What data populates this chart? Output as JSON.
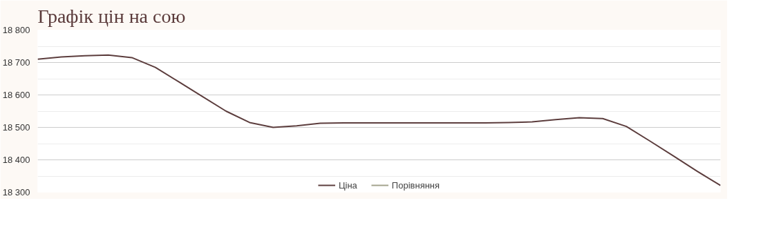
{
  "chart_data": {
    "type": "line",
    "title": "Графік цін на сою",
    "categories": [
      null,
      null,
      null,
      null,
      null,
      null,
      null,
      null,
      null,
      null,
      null,
      null,
      null,
      null,
      null,
      null,
      null,
      null,
      null,
      null,
      null,
      null,
      null,
      null,
      null,
      null,
      null,
      null,
      null,
      null
    ],
    "series": [
      {
        "name": "Ціна",
        "color": "#5c3d3d",
        "values": [
          18710,
          18717,
          18721,
          18723,
          18715,
          18685,
          18640,
          18595,
          18550,
          18515,
          18500,
          18505,
          18513,
          18514,
          18514,
          18514,
          18514,
          18514,
          18514,
          18514,
          18515,
          18517,
          18524,
          18530,
          18527,
          18503,
          18458,
          18412,
          18365,
          18321
        ]
      },
      {
        "name": "Порівняння",
        "color": "#a3a38c",
        "values": [
          null,
          null,
          null,
          null,
          null,
          null,
          null,
          null,
          null,
          null,
          null,
          null,
          null,
          null,
          null,
          null,
          null,
          null,
          null,
          null,
          null,
          null,
          null,
          null,
          null,
          null,
          null,
          null,
          null,
          null
        ]
      }
    ],
    "ylim": [
      18300,
      18800
    ],
    "yticks": [
      {
        "value": 18300,
        "label": "18 300"
      },
      {
        "value": 18350,
        "label": null
      },
      {
        "value": 18400,
        "label": "18 400"
      },
      {
        "value": 18450,
        "label": null
      },
      {
        "value": 18500,
        "label": "18 500"
      },
      {
        "value": 18550,
        "label": null
      },
      {
        "value": 18600,
        "label": "18 600"
      },
      {
        "value": 18650,
        "label": null
      },
      {
        "value": 18700,
        "label": "18 700"
      },
      {
        "value": 18750,
        "label": null
      },
      {
        "value": 18800,
        "label": "18 800"
      }
    ],
    "grid": "y",
    "legend": "bottom",
    "tick_labels": "y",
    "marker": "none",
    "line_style": "solid"
  }
}
